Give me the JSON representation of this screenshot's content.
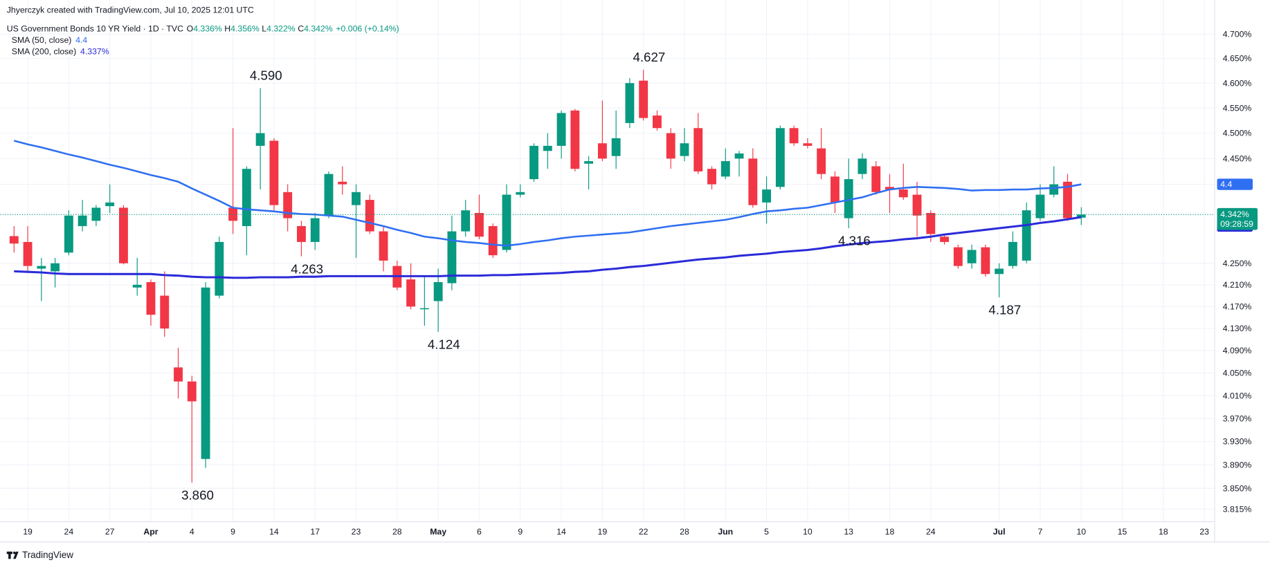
{
  "chart_data": {
    "type": "candlestick",
    "credit": "Jhyerczyk created with TradingView.com, Jul 10, 2025 12:01 UTC",
    "title": "US Government Bonds 10 YR Yield · 1D · TVC",
    "ohlc_legend": [
      {
        "key": "O",
        "label": "4.336%"
      },
      {
        "key": "H",
        "label": "4.356%"
      },
      {
        "key": "L",
        "label": "4.322%"
      },
      {
        "key": "C",
        "label": "4.342%"
      }
    ],
    "change_label": "+0.006 (+0.14%)",
    "countdown": "09:28:59",
    "footer": "TradingView",
    "up_color": "#089981",
    "down_color": "#f23645",
    "categories": [
      "Mar 18",
      "Mar 19",
      "Mar 20",
      "Mar 21",
      "Mar 24",
      "Mar 25",
      "Mar 26",
      "Mar 27",
      "Mar 28",
      "Mar 31",
      "Apr 1",
      "Apr 2",
      "Apr 3",
      "Apr 4",
      "Apr 7",
      "Apr 8",
      "Apr 9",
      "Apr 10",
      "Apr 11",
      "Apr 14",
      "Apr 15",
      "Apr 16",
      "Apr 17",
      "Apr 21",
      "Apr 22",
      "Apr 23",
      "Apr 24",
      "Apr 25",
      "Apr 28",
      "Apr 29",
      "Apr 30",
      "May 1",
      "May 2",
      "May 5",
      "May 6",
      "May 7",
      "May 8",
      "May 9",
      "May 12",
      "May 13",
      "May 14",
      "May 15",
      "May 16",
      "May 19",
      "May 20",
      "May 21",
      "May 22",
      "May 23",
      "May 27",
      "May 28",
      "May 29",
      "May 30",
      "Jun 2",
      "Jun 3",
      "Jun 4",
      "Jun 5",
      "Jun 6",
      "Jun 9",
      "Jun 10",
      "Jun 11",
      "Jun 12",
      "Jun 13",
      "Jun 16",
      "Jun 17",
      "Jun 18",
      "Jun 20",
      "Jun 23",
      "Jun 24",
      "Jun 25",
      "Jun 26",
      "Jun 27",
      "Jun 30",
      "Jul 1",
      "Jul 2",
      "Jul 3",
      "Jul 7",
      "Jul 8",
      "Jul 9",
      "Jul 10",
      "Jul 11",
      "Jul 14",
      "Jul 15",
      "Jul 16",
      "Jul 17",
      "Jul 18",
      "Jul 21",
      "Jul 22",
      "Jul 23"
    ],
    "open": [
      4.301,
      4.29,
      4.24,
      4.235,
      4.27,
      4.32,
      4.33,
      4.358,
      4.355,
      4.205,
      4.215,
      4.19,
      4.06,
      4.035,
      3.9,
      4.19,
      4.355,
      4.32,
      4.475,
      4.485,
      4.385,
      4.32,
      4.29,
      4.34,
      4.405,
      4.36,
      4.37,
      4.31,
      4.245,
      4.22,
      4.165,
      4.18,
      4.213,
      4.31,
      4.345,
      4.32,
      4.275,
      4.38,
      4.41,
      4.465,
      4.475,
      4.545,
      4.44,
      4.48,
      4.455,
      4.52,
      4.605,
      4.535,
      4.5,
      4.455,
      4.51,
      4.43,
      4.415,
      4.45,
      4.45,
      4.365,
      4.395,
      4.51,
      4.48,
      4.47,
      4.415,
      4.335,
      4.42,
      4.435,
      4.395,
      4.39,
      4.38,
      4.345,
      4.3,
      4.28,
      4.25,
      4.28,
      4.23,
      4.245,
      4.255,
      4.335,
      4.38,
      4.405,
      4.336,
      null,
      null,
      null,
      null,
      null,
      null,
      null,
      null,
      null
    ],
    "high": [
      4.32,
      4.32,
      4.26,
      4.26,
      4.35,
      4.37,
      4.36,
      4.4,
      4.36,
      4.26,
      4.22,
      4.235,
      4.095,
      4.045,
      4.215,
      4.3,
      4.51,
      4.435,
      4.59,
      4.49,
      4.4,
      4.33,
      4.345,
      4.425,
      4.435,
      4.4,
      4.38,
      4.32,
      4.255,
      4.25,
      4.225,
      4.24,
      4.34,
      4.37,
      4.38,
      4.325,
      4.4,
      4.4,
      4.48,
      4.5,
      4.545,
      4.548,
      4.455,
      4.565,
      4.545,
      4.61,
      4.627,
      4.545,
      4.51,
      4.51,
      4.54,
      4.435,
      4.47,
      4.465,
      4.47,
      4.415,
      4.515,
      4.515,
      4.49,
      4.51,
      4.425,
      4.45,
      4.46,
      4.445,
      4.42,
      4.44,
      4.405,
      4.35,
      4.305,
      4.285,
      4.285,
      4.285,
      4.25,
      4.31,
      4.365,
      4.4,
      4.435,
      4.42,
      4.356,
      null,
      null,
      null,
      null,
      null,
      null,
      null,
      null,
      null
    ],
    "low": [
      4.27,
      4.235,
      4.18,
      4.205,
      4.265,
      4.31,
      4.32,
      4.345,
      4.248,
      4.19,
      4.135,
      4.115,
      4.005,
      3.86,
      3.885,
      4.185,
      4.305,
      4.265,
      4.39,
      4.35,
      4.31,
      4.263,
      4.275,
      4.335,
      4.38,
      4.26,
      4.305,
      4.235,
      4.2,
      4.165,
      4.135,
      4.124,
      4.2,
      4.3,
      4.295,
      4.26,
      4.27,
      4.375,
      4.405,
      4.43,
      4.45,
      4.425,
      4.39,
      4.445,
      4.43,
      4.51,
      4.525,
      4.505,
      4.43,
      4.445,
      4.42,
      4.39,
      4.41,
      4.415,
      4.355,
      4.325,
      4.39,
      4.475,
      4.47,
      4.41,
      4.345,
      4.316,
      4.41,
      4.38,
      4.345,
      4.37,
      4.3,
      4.29,
      4.285,
      4.24,
      4.24,
      4.225,
      4.187,
      4.24,
      4.25,
      4.33,
      4.375,
      4.33,
      4.322,
      null,
      null,
      null,
      null,
      null,
      null,
      null,
      null,
      null
    ],
    "close": [
      4.287,
      4.245,
      4.245,
      4.25,
      4.34,
      4.34,
      4.355,
      4.365,
      4.25,
      4.21,
      4.155,
      4.13,
      4.035,
      4.0,
      4.205,
      4.29,
      4.33,
      4.43,
      4.5,
      4.36,
      4.335,
      4.29,
      4.335,
      4.42,
      4.4,
      4.385,
      4.31,
      4.255,
      4.205,
      4.17,
      4.167,
      4.215,
      4.31,
      4.35,
      4.3,
      4.265,
      4.38,
      4.385,
      4.475,
      4.475,
      4.54,
      4.43,
      4.445,
      4.45,
      4.49,
      4.6,
      4.53,
      4.51,
      4.45,
      4.48,
      4.425,
      4.4,
      4.445,
      4.46,
      4.36,
      4.39,
      4.51,
      4.48,
      4.475,
      4.42,
      4.365,
      4.41,
      4.45,
      4.385,
      4.39,
      4.375,
      4.34,
      4.305,
      4.29,
      4.245,
      4.275,
      4.23,
      4.24,
      4.29,
      4.35,
      4.38,
      4.4,
      4.335,
      4.342,
      null,
      null,
      null,
      null,
      null,
      null,
      null,
      null,
      null
    ],
    "overlays": [
      {
        "name": "SMA (50, close)",
        "last_label": "4.4",
        "color": "#2f6ff2",
        "values": [
          4.485,
          4.478,
          4.472,
          4.465,
          4.458,
          4.452,
          4.445,
          4.438,
          4.432,
          4.425,
          4.418,
          4.412,
          4.405,
          4.392,
          4.38,
          4.368,
          4.355,
          4.352,
          4.35,
          4.348,
          4.345,
          4.343,
          4.342,
          4.34,
          4.338,
          4.332,
          4.326,
          4.32,
          4.313,
          4.307,
          4.3,
          4.297,
          4.293,
          4.29,
          4.288,
          4.285,
          4.283,
          4.286,
          4.29,
          4.293,
          4.297,
          4.3,
          4.302,
          4.304,
          4.306,
          4.308,
          4.312,
          4.316,
          4.32,
          4.323,
          4.326,
          4.329,
          4.332,
          4.337,
          4.343,
          4.348,
          4.35,
          4.353,
          4.355,
          4.36,
          4.365,
          4.37,
          4.375,
          4.383,
          4.39,
          4.393,
          4.395,
          4.394,
          4.393,
          4.391,
          4.388,
          4.389,
          4.389,
          4.39,
          4.39,
          4.392,
          4.393,
          4.395,
          4.4,
          null,
          null,
          null,
          null,
          null,
          null,
          null,
          null,
          null
        ]
      },
      {
        "name": "SMA (200, close)",
        "last_label": "4.337%",
        "color": "#2b2bd9",
        "values": [
          4.235,
          4.234,
          4.233,
          4.231,
          4.23,
          4.23,
          4.23,
          4.23,
          4.23,
          4.23,
          4.23,
          4.228,
          4.227,
          4.225,
          4.224,
          4.224,
          4.223,
          4.223,
          4.224,
          4.224,
          4.224,
          4.225,
          4.225,
          4.226,
          4.226,
          4.226,
          4.226,
          4.226,
          4.226,
          4.226,
          4.226,
          4.226,
          4.227,
          4.227,
          4.227,
          4.228,
          4.228,
          4.229,
          4.23,
          4.231,
          4.232,
          4.234,
          4.235,
          4.238,
          4.24,
          4.243,
          4.245,
          4.248,
          4.251,
          4.254,
          4.257,
          4.259,
          4.261,
          4.264,
          4.266,
          4.268,
          4.271,
          4.273,
          4.275,
          4.278,
          4.282,
          4.285,
          4.288,
          4.29,
          4.292,
          4.295,
          4.297,
          4.3,
          4.304,
          4.307,
          4.31,
          4.313,
          4.316,
          4.319,
          4.322,
          4.326,
          4.329,
          4.333,
          4.337,
          null,
          null,
          null,
          null,
          null,
          null,
          null,
          null,
          null
        ]
      }
    ],
    "annotations": [
      {
        "category": "Apr 11",
        "value": 4.59,
        "label": "4.590"
      },
      {
        "category": "May 22",
        "value": 4.627,
        "label": "4.627"
      },
      {
        "category": "Apr 4",
        "value": 3.86,
        "label": "3.860"
      },
      {
        "category": "Apr 16",
        "value": 4.263,
        "label": "4.263"
      },
      {
        "category": "May 1",
        "value": 4.124,
        "label": "4.124"
      },
      {
        "category": "Jun 13",
        "value": 4.316,
        "label": "4.316"
      },
      {
        "category": "Jul 1",
        "value": 4.187,
        "label": "4.187"
      }
    ],
    "ylim": [
      3.794,
      4.771
    ],
    "log_scale": true,
    "grid": true,
    "yticks": [
      {
        "value": 4.7,
        "label": "4.700%"
      },
      {
        "value": 4.65,
        "label": "4.650%"
      },
      {
        "value": 4.6,
        "label": "4.600%"
      },
      {
        "value": 4.55,
        "label": "4.550%"
      },
      {
        "value": 4.5,
        "label": "4.500%"
      },
      {
        "value": 4.45,
        "label": "4.450%"
      },
      {
        "value": 4.4,
        "label": "4.400%"
      },
      {
        "value": 4.25,
        "label": "4.250%"
      },
      {
        "value": 4.21,
        "label": "4.210%"
      },
      {
        "value": 4.17,
        "label": "4.170%"
      },
      {
        "value": 4.13,
        "label": "4.130%"
      },
      {
        "value": 4.09,
        "label": "4.090%"
      },
      {
        "value": 4.05,
        "label": "4.050%"
      },
      {
        "value": 4.01,
        "label": "4.010%"
      },
      {
        "value": 3.97,
        "label": "3.970%"
      },
      {
        "value": 3.93,
        "label": "3.930%"
      },
      {
        "value": 3.89,
        "label": "3.890%"
      },
      {
        "value": 3.85,
        "label": "3.850%"
      },
      {
        "value": 3.815,
        "label": "3.815%"
      }
    ],
    "xticks": [
      {
        "value": "Mar 19",
        "label": "19"
      },
      {
        "value": "Mar 24",
        "label": "24"
      },
      {
        "value": "Mar 27",
        "label": "27"
      },
      {
        "value": "Apr 1",
        "label": "Apr"
      },
      {
        "value": "Apr 4",
        "label": "4"
      },
      {
        "value": "Apr 9",
        "label": "9"
      },
      {
        "value": "Apr 14",
        "label": "14"
      },
      {
        "value": "Apr 17",
        "label": "17"
      },
      {
        "value": "Apr 23",
        "label": "23"
      },
      {
        "value": "Apr 28",
        "label": "28"
      },
      {
        "value": "May 1",
        "label": "May"
      },
      {
        "value": "May 6",
        "label": "6"
      },
      {
        "value": "May 9",
        "label": "9"
      },
      {
        "value": "May 14",
        "label": "14"
      },
      {
        "value": "May 19",
        "label": "19"
      },
      {
        "value": "May 22",
        "label": "22"
      },
      {
        "value": "May 28",
        "label": "28"
      },
      {
        "value": "Jun 2",
        "label": "Jun"
      },
      {
        "value": "Jun 5",
        "label": "5"
      },
      {
        "value": "Jun 10",
        "label": "10"
      },
      {
        "value": "Jun 13",
        "label": "13"
      },
      {
        "value": "Jun 18",
        "label": "18"
      },
      {
        "value": "Jun 24",
        "label": "24"
      },
      {
        "value": "Jul 1",
        "label": "Jul"
      },
      {
        "value": "Jul 7",
        "label": "7"
      },
      {
        "value": "Jul 10",
        "label": "10"
      },
      {
        "value": "Jul 15",
        "label": "15"
      },
      {
        "value": "Jul 18",
        "label": "18"
      },
      {
        "value": "Jul 23",
        "label": "23"
      }
    ]
  }
}
